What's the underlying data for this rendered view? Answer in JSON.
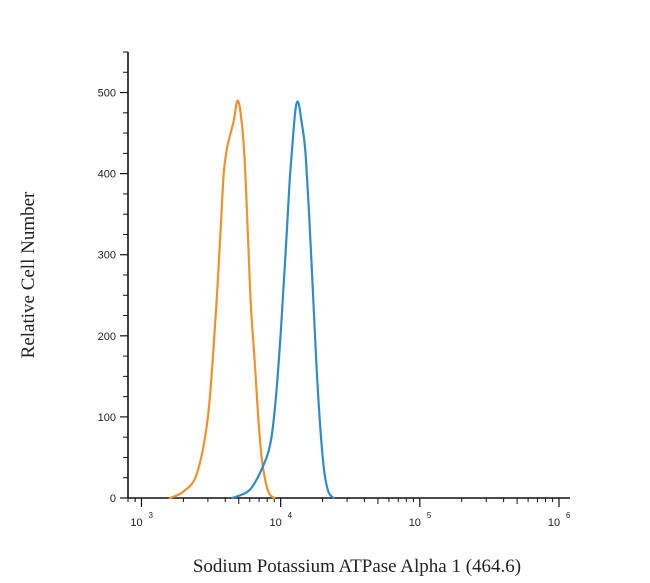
{
  "chart_data": {
    "type": "line",
    "xlabel": "Sodium Potassium ATPase Alpha 1 (464.6)",
    "ylabel": "Relative Cell Number",
    "x_scale": "log",
    "xlim": [
      800,
      1200000
    ],
    "ylim": [
      0,
      550
    ],
    "grid": false,
    "legend": "none",
    "y_ticks": [
      0,
      100,
      200,
      300,
      400,
      500
    ],
    "x_ticks": [
      {
        "base": "10",
        "exp": "3",
        "value": 1000
      },
      {
        "base": "10",
        "exp": "4",
        "value": 10000
      },
      {
        "base": "10",
        "exp": "5",
        "value": 100000
      },
      {
        "base": "10",
        "exp": "6",
        "value": 1000000
      }
    ],
    "series": [
      {
        "color": "#f0922b",
        "x": [
          1600,
          2000,
          2500,
          3000,
          3400,
          3700,
          3900,
          4100,
          4300,
          4600,
          4900,
          5200,
          5500,
          5800,
          6100,
          6500,
          6900,
          7300,
          7800,
          8300,
          9000
        ],
        "values": [
          0,
          8,
          30,
          100,
          220,
          330,
          400,
          430,
          445,
          465,
          490,
          470,
          420,
          330,
          240,
          170,
          100,
          50,
          20,
          5,
          0
        ]
      },
      {
        "color": "#2f8cc9",
        "x": [
          4500,
          6000,
          7500,
          8500,
          9200,
          9800,
          10400,
          11000,
          11600,
          12200,
          12800,
          13400,
          14100,
          15000,
          16000,
          17000,
          18000,
          19200,
          20500,
          22000,
          24000
        ],
        "values": [
          0,
          10,
          40,
          70,
          120,
          180,
          250,
          320,
          390,
          440,
          480,
          488,
          465,
          430,
          350,
          260,
          170,
          90,
          35,
          8,
          0
        ]
      }
    ]
  }
}
